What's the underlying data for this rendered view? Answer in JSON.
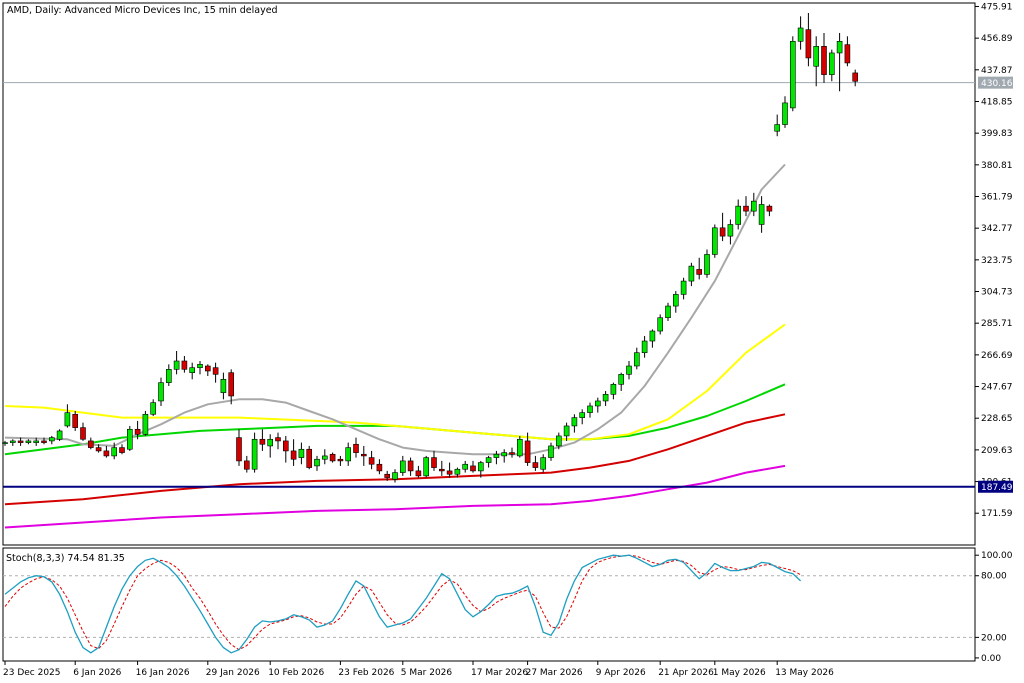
{
  "chart_title": "AMD, Daily:  Advanced Micro Devices Inc, 15 min delayed",
  "colors": {
    "up_candle": "#00e600",
    "down_candle": "#d40000",
    "ma_short": "#a8a8a8",
    "ma_medium": "#ffff00",
    "ma_green": "#00d600",
    "ma_red": "#d40000",
    "ma_long": "#e000e0",
    "support_line": "#000080",
    "price_line": "#a0a8b0",
    "stoch_main": "#1e9ec0",
    "stoch_signal": "#e00000"
  },
  "chart_data": [
    {
      "type": "candlestick",
      "title": "AMD, Daily:  Advanced Micro Devices Inc, 15 min delayed",
      "ylim": [
        152.5,
        478
      ],
      "y_ticks": [
        "475.91",
        "456.89",
        "437.87",
        "418.85",
        "399.83",
        "380.81",
        "361.79",
        "342.77",
        "323.75",
        "304.73",
        "285.71",
        "266.69",
        "247.67",
        "228.65",
        "209.63",
        "190.61",
        "171.59"
      ],
      "x_tick_labels": [
        "23 Dec 2025",
        "6 Jan 2026",
        "16 Jan 2026",
        "29 Jan 2026",
        "10 Feb 2026",
        "23 Feb 2026",
        "5 Mar 2026",
        "17 Mar 2026",
        "27 Mar 2026",
        "9 Apr 2026",
        "21 Apr 2026",
        "1 May 2026",
        "13 May 2026"
      ],
      "x_tick_index": [
        0,
        9,
        17,
        26,
        34,
        43,
        51,
        60,
        67,
        76,
        84,
        91,
        99
      ],
      "last_price_label": "430.16",
      "last_price": 430.16,
      "support_label": "187.49",
      "support_level": 187.49,
      "candles": [
        [
          214,
          215,
          212,
          214
        ],
        [
          214,
          216,
          212,
          215
        ],
        [
          215,
          217,
          212,
          214
        ],
        [
          214,
          216,
          213,
          215
        ],
        [
          214,
          217,
          212,
          215
        ],
        [
          215,
          217,
          213,
          214
        ],
        [
          215,
          218,
          213,
          217
        ],
        [
          216,
          222,
          215,
          221
        ],
        [
          224,
          237,
          223,
          232
        ],
        [
          231,
          233,
          221,
          223
        ],
        [
          223,
          226,
          215,
          216
        ],
        [
          215,
          217,
          210,
          211
        ],
        [
          211,
          213,
          208,
          209
        ],
        [
          209,
          212,
          205,
          206
        ],
        [
          206,
          214,
          204,
          211
        ],
        [
          211,
          213,
          207,
          208
        ],
        [
          210,
          224,
          209,
          222
        ],
        [
          222,
          227,
          216,
          219
        ],
        [
          219,
          233,
          218,
          231
        ],
        [
          231,
          240,
          230,
          238
        ],
        [
          239,
          253,
          236,
          250
        ],
        [
          250,
          261,
          248,
          258
        ],
        [
          258,
          269,
          255,
          263
        ],
        [
          263,
          266,
          256,
          258
        ],
        [
          256,
          262,
          252,
          259
        ],
        [
          259,
          263,
          255,
          261
        ],
        [
          260,
          261,
          254,
          257
        ],
        [
          259,
          262,
          250,
          255
        ],
        [
          244,
          256,
          240,
          252
        ],
        [
          256,
          258,
          237,
          242
        ],
        [
          217,
          222,
          200,
          203
        ],
        [
          203,
          206,
          196,
          198
        ],
        [
          198,
          220,
          196,
          216
        ],
        [
          216,
          222,
          209,
          213
        ],
        [
          212,
          219,
          205,
          216
        ],
        [
          217,
          220,
          210,
          215
        ],
        [
          215,
          218,
          202,
          209
        ],
        [
          209,
          216,
          200,
          204
        ],
        [
          205,
          214,
          201,
          210
        ],
        [
          210,
          212,
          198,
          199
        ],
        [
          200,
          206,
          197,
          204
        ],
        [
          204,
          210,
          201,
          206
        ],
        [
          207,
          208,
          202,
          203
        ],
        [
          204,
          206,
          200,
          203
        ],
        [
          203,
          214,
          200,
          211
        ],
        [
          213,
          217,
          205,
          208
        ],
        [
          207,
          212,
          200,
          206
        ],
        [
          205,
          209,
          198,
          201
        ],
        [
          201,
          204,
          195,
          197
        ],
        [
          195,
          197,
          191,
          193
        ],
        [
          192,
          198,
          190,
          196
        ],
        [
          196,
          206,
          194,
          203
        ],
        [
          203,
          205,
          194,
          197
        ],
        [
          197,
          200,
          193,
          194
        ],
        [
          194,
          206,
          193,
          205
        ],
        [
          205,
          209,
          197,
          199
        ],
        [
          198,
          203,
          194,
          197
        ],
        [
          197,
          202,
          193,
          195
        ],
        [
          195,
          199,
          193,
          198
        ],
        [
          198,
          203,
          196,
          201
        ],
        [
          200,
          203,
          196,
          197
        ],
        [
          197,
          203,
          193,
          202
        ],
        [
          202,
          206,
          199,
          205
        ],
        [
          205,
          209,
          201,
          207
        ],
        [
          206,
          210,
          202,
          208
        ],
        [
          208,
          211,
          205,
          207
        ],
        [
          206,
          218,
          205,
          216
        ],
        [
          215,
          220,
          200,
          202
        ],
        [
          202,
          206,
          197,
          199
        ],
        [
          198,
          207,
          196,
          205
        ],
        [
          205,
          214,
          203,
          212
        ],
        [
          212,
          220,
          210,
          218
        ],
        [
          218,
          226,
          215,
          224
        ],
        [
          224,
          231,
          220,
          229
        ],
        [
          229,
          234,
          225,
          232
        ],
        [
          232,
          238,
          229,
          236
        ],
        [
          236,
          241,
          232,
          239
        ],
        [
          239,
          245,
          236,
          243
        ],
        [
          243,
          250,
          240,
          249
        ],
        [
          249,
          256,
          245,
          255
        ],
        [
          255,
          263,
          252,
          260
        ],
        [
          260,
          271,
          258,
          268
        ],
        [
          268,
          278,
          265,
          275
        ],
        [
          275,
          282,
          271,
          281
        ],
        [
          281,
          291,
          279,
          289
        ],
        [
          289,
          298,
          287,
          296
        ],
        [
          296,
          305,
          292,
          303
        ],
        [
          303,
          313,
          300,
          311
        ],
        [
          311,
          322,
          308,
          320
        ],
        [
          318,
          325,
          312,
          315
        ],
        [
          315,
          330,
          313,
          327
        ],
        [
          327,
          345,
          325,
          343
        ],
        [
          343,
          352,
          335,
          338
        ],
        [
          338,
          348,
          333,
          345
        ],
        [
          345,
          360,
          342,
          356
        ],
        [
          356,
          362,
          350,
          353
        ],
        [
          353,
          364,
          350,
          359
        ],
        [
          345,
          362,
          340,
          357
        ],
        [
          356,
          357,
          350,
          353
        ],
        [
          401,
          411,
          398,
          405
        ],
        [
          405,
          422,
          403,
          418
        ],
        [
          415,
          458,
          413,
          455
        ],
        [
          455,
          470,
          450,
          463
        ],
        [
          462,
          472,
          440,
          445
        ],
        [
          440,
          458,
          428,
          452
        ],
        [
          452,
          460,
          430,
          435
        ],
        [
          435,
          450,
          431,
          448
        ],
        [
          448,
          460,
          425,
          455
        ],
        [
          453,
          458,
          440,
          442
        ],
        [
          436,
          438,
          428,
          431
        ]
      ],
      "ma_short_points": [
        [
          0,
          217
        ],
        [
          8,
          216
        ],
        [
          10,
          213
        ],
        [
          14,
          212
        ],
        [
          17,
          219
        ],
        [
          20,
          225
        ],
        [
          23,
          232
        ],
        [
          26,
          237
        ],
        [
          30,
          240
        ],
        [
          33,
          240
        ],
        [
          36,
          238
        ],
        [
          39,
          233
        ],
        [
          42,
          228
        ],
        [
          45,
          222
        ],
        [
          48,
          216
        ],
        [
          51,
          211
        ],
        [
          54,
          209
        ],
        [
          57,
          208
        ],
        [
          60,
          207
        ],
        [
          63,
          207
        ],
        [
          67,
          207
        ],
        [
          70,
          210
        ],
        [
          73,
          214
        ],
        [
          76,
          222
        ],
        [
          79,
          232
        ],
        [
          82,
          248
        ],
        [
          85,
          268
        ],
        [
          88,
          289
        ],
        [
          91,
          311
        ],
        [
          94,
          338
        ],
        [
          97,
          366
        ],
        [
          100,
          381
        ]
      ],
      "ma_medium_points": [
        [
          0,
          236
        ],
        [
          5,
          235
        ],
        [
          10,
          232
        ],
        [
          15,
          229
        ],
        [
          20,
          229
        ],
        [
          25,
          229
        ],
        [
          30,
          229
        ],
        [
          35,
          228
        ],
        [
          40,
          227
        ],
        [
          45,
          226
        ],
        [
          50,
          224
        ],
        [
          55,
          222
        ],
        [
          60,
          220
        ],
        [
          65,
          218
        ],
        [
          70,
          216
        ],
        [
          75,
          216
        ],
        [
          80,
          219
        ],
        [
          85,
          228
        ],
        [
          90,
          245
        ],
        [
          95,
          268
        ],
        [
          100,
          285
        ]
      ],
      "ma_green_points": [
        [
          0,
          207
        ],
        [
          5,
          210
        ],
        [
          10,
          213
        ],
        [
          15,
          217
        ],
        [
          20,
          219
        ],
        [
          25,
          221
        ],
        [
          30,
          222
        ],
        [
          35,
          223
        ],
        [
          40,
          224
        ],
        [
          45,
          224
        ],
        [
          50,
          224
        ],
        [
          55,
          222
        ],
        [
          60,
          220
        ],
        [
          65,
          218
        ],
        [
          70,
          216
        ],
        [
          75,
          216
        ],
        [
          80,
          218
        ],
        [
          85,
          223
        ],
        [
          90,
          230
        ],
        [
          95,
          239
        ],
        [
          100,
          249
        ]
      ],
      "ma_red_points": [
        [
          0,
          177
        ],
        [
          10,
          180
        ],
        [
          20,
          185
        ],
        [
          30,
          189
        ],
        [
          40,
          191
        ],
        [
          50,
          192
        ],
        [
          55,
          193
        ],
        [
          60,
          194
        ],
        [
          65,
          195
        ],
        [
          70,
          196
        ],
        [
          75,
          199
        ],
        [
          80,
          203
        ],
        [
          85,
          210
        ],
        [
          90,
          218
        ],
        [
          95,
          226
        ],
        [
          100,
          231
        ]
      ],
      "ma_long_points": [
        [
          0,
          163
        ],
        [
          10,
          166
        ],
        [
          20,
          169
        ],
        [
          30,
          171
        ],
        [
          40,
          173
        ],
        [
          50,
          174
        ],
        [
          60,
          176
        ],
        [
          70,
          177
        ],
        [
          75,
          179
        ],
        [
          80,
          182
        ],
        [
          85,
          186
        ],
        [
          90,
          190
        ],
        [
          95,
          196
        ],
        [
          100,
          200
        ]
      ]
    },
    {
      "type": "line",
      "title": "Stoch(8,3,3) 74.54 81.35",
      "ylim": [
        -3,
        107
      ],
      "y_ticks": [
        "100.00",
        "80.00",
        "20.00",
        "0.00"
      ],
      "levels": [
        80,
        20
      ],
      "series": [
        {
          "name": "main",
          "values": [
            62,
            68,
            74,
            78,
            80,
            79,
            74,
            62,
            45,
            25,
            10,
            5,
            10,
            30,
            50,
            67,
            80,
            89,
            95,
            97,
            93,
            88,
            80,
            70,
            58,
            46,
            33,
            20,
            10,
            5,
            8,
            18,
            30,
            36,
            35,
            36,
            38,
            42,
            40,
            37,
            30,
            32,
            36,
            48,
            62,
            75,
            70,
            55,
            40,
            30,
            32,
            34,
            38,
            48,
            58,
            70,
            82,
            77,
            62,
            47,
            40,
            45,
            52,
            60,
            62,
            63,
            66,
            70,
            50,
            25,
            22,
            34,
            57,
            75,
            88,
            92,
            96,
            98,
            100,
            99,
            100,
            97,
            93,
            89,
            91,
            95,
            96,
            93,
            85,
            77,
            83,
            92,
            88,
            85,
            85,
            87,
            89,
            93,
            92,
            88,
            84,
            82,
            75
          ]
        },
        {
          "name": "signal",
          "values": [
            50,
            60,
            68,
            73,
            77,
            79,
            76,
            70,
            58,
            42,
            26,
            12,
            9,
            17,
            33,
            50,
            66,
            80,
            87,
            92,
            95,
            93,
            88,
            80,
            68,
            58,
            46,
            33,
            22,
            13,
            8,
            12,
            20,
            28,
            33,
            35,
            37,
            40,
            41,
            39,
            35,
            33,
            33,
            39,
            50,
            62,
            70,
            66,
            54,
            42,
            34,
            32,
            35,
            42,
            50,
            60,
            70,
            76,
            72,
            61,
            51,
            45,
            48,
            54,
            58,
            61,
            64,
            66,
            60,
            44,
            30,
            29,
            40,
            57,
            75,
            87,
            93,
            96,
            98,
            99,
            100,
            99,
            96,
            93,
            91,
            93,
            95,
            94,
            90,
            83,
            81,
            86,
            89,
            88,
            86,
            86,
            88,
            90,
            91,
            89,
            87,
            85,
            81
          ]
        }
      ]
    }
  ]
}
